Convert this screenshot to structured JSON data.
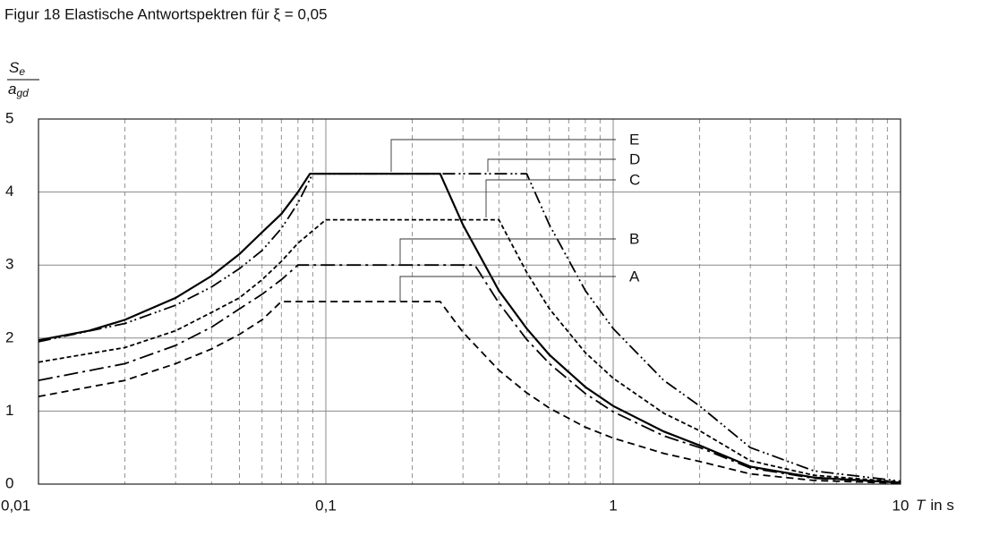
{
  "chart_data": {
    "type": "line",
    "title": "Figur 18   Elastische Antwortspektren für ξ = 0,05",
    "y_label": {
      "numerator": "S",
      "numerator_sub": "e",
      "denominator": "a",
      "denominator_sub": "gd"
    },
    "x_label": {
      "symbol": "T",
      "unit": "in s"
    },
    "x_scale": "log",
    "xlim": [
      0.01,
      10
    ],
    "ylim": [
      0,
      5
    ],
    "xticks": [
      {
        "value": 0.01,
        "label": "0,01"
      },
      {
        "value": 0.1,
        "label": "0,1"
      },
      1,
      10
    ],
    "x_minor_grid": [
      0.02,
      0.03,
      0.04,
      0.05,
      0.06,
      0.07,
      0.08,
      0.09,
      0.2,
      0.3,
      0.4,
      0.5,
      0.6,
      0.7,
      0.8,
      0.9,
      2,
      3,
      4,
      5,
      6,
      7,
      8,
      9
    ],
    "yticks": [
      0,
      1,
      2,
      3,
      4,
      5
    ],
    "grid": true,
    "series": [
      {
        "name": "A",
        "color": "#000000",
        "dash": "8,5",
        "x": [
          0.01,
          0.02,
          0.03,
          0.04,
          0.05,
          0.06,
          0.07,
          0.25,
          0.3,
          0.4,
          0.5,
          0.6,
          0.8,
          1,
          1.5,
          2,
          3,
          5,
          10
        ],
        "values": [
          1.2,
          1.42,
          1.65,
          1.85,
          2.05,
          2.25,
          2.5,
          2.5,
          2.08,
          1.56,
          1.25,
          1.04,
          0.78,
          0.63,
          0.42,
          0.31,
          0.14,
          0.05,
          0.01
        ]
      },
      {
        "name": "B",
        "color": "#000000",
        "dash": "16,5,3,5",
        "x": [
          0.01,
          0.02,
          0.03,
          0.04,
          0.05,
          0.06,
          0.07,
          0.08,
          0.33,
          0.4,
          0.5,
          0.6,
          0.8,
          1,
          1.5,
          2,
          3,
          5,
          10
        ],
        "values": [
          1.42,
          1.65,
          1.9,
          2.15,
          2.4,
          2.6,
          2.8,
          3.0,
          3.0,
          2.48,
          1.98,
          1.65,
          1.24,
          0.99,
          0.66,
          0.5,
          0.22,
          0.08,
          0.02
        ]
      },
      {
        "name": "C",
        "color": "#000000",
        "dash": "5,3",
        "x": [
          0.01,
          0.02,
          0.03,
          0.04,
          0.05,
          0.06,
          0.07,
          0.08,
          0.1,
          0.4,
          0.5,
          0.6,
          0.8,
          1,
          1.5,
          2,
          3,
          5,
          10
        ],
        "values": [
          1.67,
          1.87,
          2.1,
          2.35,
          2.55,
          2.8,
          3.05,
          3.3,
          3.62,
          3.62,
          2.9,
          2.4,
          1.8,
          1.45,
          0.97,
          0.73,
          0.32,
          0.12,
          0.03
        ]
      },
      {
        "name": "D",
        "color": "#000000",
        "dash": "14,4,2,3,2,4",
        "x": [
          0.01,
          0.02,
          0.03,
          0.04,
          0.05,
          0.06,
          0.07,
          0.08,
          0.09,
          0.5,
          0.6,
          0.8,
          1,
          1.5,
          2,
          3,
          5,
          10
        ],
        "values": [
          1.95,
          2.2,
          2.45,
          2.7,
          2.95,
          3.2,
          3.5,
          3.85,
          4.25,
          4.25,
          3.55,
          2.65,
          2.13,
          1.42,
          1.07,
          0.5,
          0.18,
          0.04
        ]
      },
      {
        "name": "E",
        "color": "#000000",
        "dash": "none",
        "x": [
          0.01,
          0.015,
          0.02,
          0.03,
          0.04,
          0.05,
          0.06,
          0.07,
          0.08,
          0.088,
          0.25,
          0.3,
          0.4,
          0.5,
          0.6,
          0.8,
          1,
          1.5,
          2,
          3,
          5,
          10
        ],
        "values": [
          1.97,
          2.1,
          2.25,
          2.55,
          2.85,
          3.15,
          3.45,
          3.7,
          4.0,
          4.25,
          4.25,
          3.55,
          2.65,
          2.13,
          1.77,
          1.33,
          1.07,
          0.72,
          0.53,
          0.24,
          0.09,
          0.02
        ]
      }
    ]
  }
}
